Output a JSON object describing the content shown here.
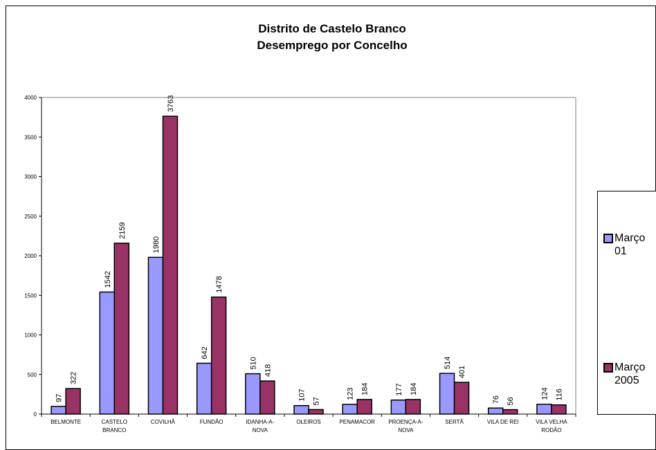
{
  "chart_data": {
    "type": "bar",
    "title": "Distrito de Castelo Branco",
    "subtitle": "Desemprego por Concelho",
    "categories": [
      [
        "BELMONTE"
      ],
      [
        "CASTELO",
        "BRANCO"
      ],
      [
        "COVILHÃ"
      ],
      [
        "FUNDÃO"
      ],
      [
        "IDANHA-A-",
        "NOVA"
      ],
      [
        "OLEIROS"
      ],
      [
        "PENAMACOR"
      ],
      [
        "PROENÇA-A-",
        "NOVA"
      ],
      [
        "SERTÃ"
      ],
      [
        "VILA DE REI"
      ],
      [
        "VILA VELHA",
        "RODÃO"
      ]
    ],
    "series": [
      {
        "name": "Março 01",
        "color": "#9999ff",
        "values": [
          97,
          1542,
          1980,
          642,
          510,
          107,
          123,
          177,
          514,
          76,
          124
        ]
      },
      {
        "name": "Março 2005",
        "color": "#993366",
        "values": [
          322,
          2159,
          3763,
          1478,
          418,
          57,
          184,
          184,
          401,
          56,
          116
        ]
      }
    ],
    "ylim": [
      0,
      4000
    ],
    "yticks": [
      0,
      500,
      1000,
      1500,
      2000,
      2500,
      3000,
      3500,
      4000
    ],
    "grid": false,
    "legend_position": "right",
    "data_labels": true,
    "plot_background": "#ffffff"
  },
  "legend": {
    "items": [
      {
        "line1": "Março",
        "line2": "01"
      },
      {
        "line1": "Março",
        "line2": "2005"
      }
    ]
  }
}
